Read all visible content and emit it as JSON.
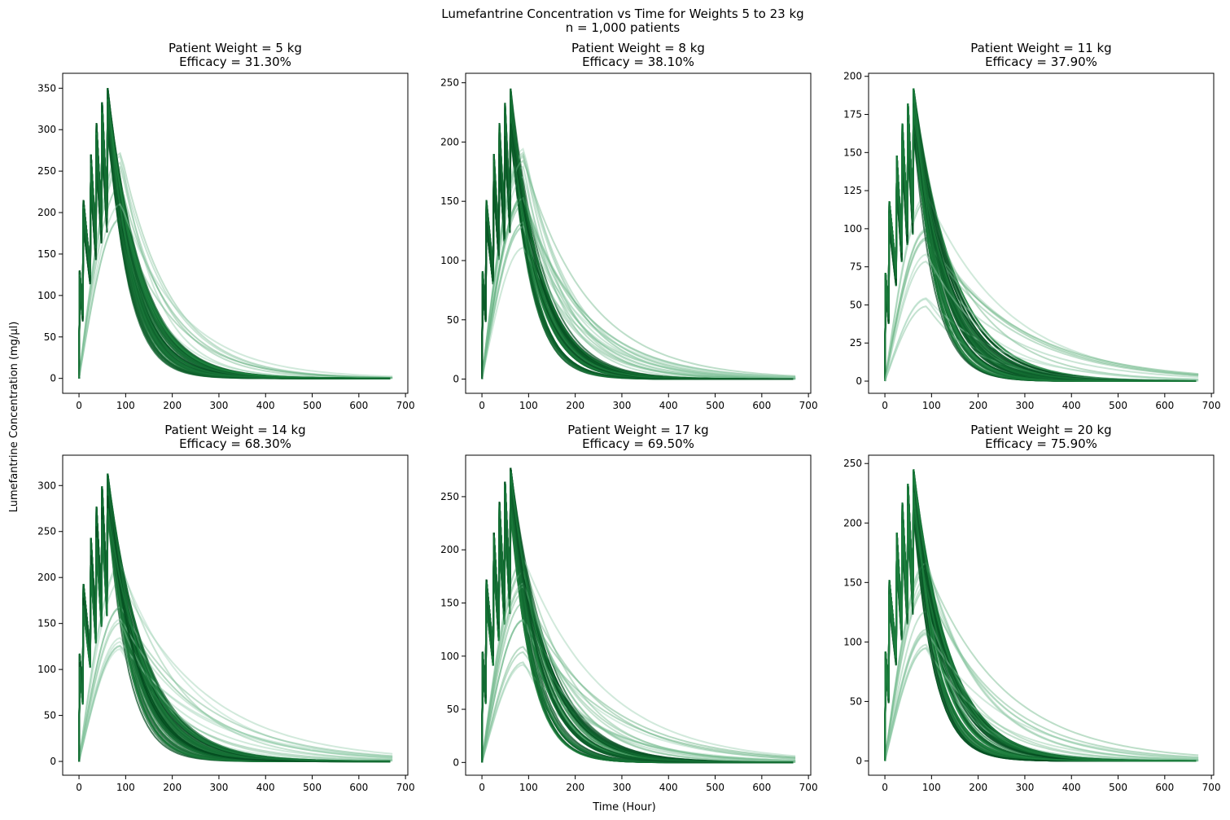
{
  "figure": {
    "suptitle_line1": "Lumefantrine Concentration vs Time for Weights 5 to 23 kg",
    "suptitle_line2": "n = 1,000 patients",
    "ylabel": "Lumefantrine Concentration (mg/µl)",
    "xlabel": "Time (Hour)"
  },
  "colors": {
    "light_green": "#a8d8bd",
    "mid_green": "#238b45",
    "dark_green": "#00441b",
    "axis": "#000000"
  },
  "chart_data": [
    {
      "type": "line",
      "title_line1": "Patient Weight = 5 kg",
      "title_line2": "Efficacy = 31.30%",
      "x_ticks": [
        0,
        100,
        200,
        300,
        400,
        500,
        600,
        700
      ],
      "y_ticks": [
        0,
        50,
        100,
        150,
        200,
        250,
        300,
        350
      ],
      "xlim": [
        -35,
        705
      ],
      "ylim": [
        -18,
        368
      ],
      "dose_times": [
        0,
        8,
        24,
        36,
        48,
        60
      ],
      "peaks": [
        130,
        215,
        270,
        308,
        333,
        350
      ],
      "x_max": 672,
      "decay_halflife_hours": [
        30,
        100
      ],
      "min_peak": 175
    },
    {
      "type": "line",
      "title_line1": "Patient Weight = 8 kg",
      "title_line2": "Efficacy = 38.10%",
      "x_ticks": [
        0,
        100,
        200,
        300,
        400,
        500,
        600,
        700
      ],
      "y_ticks": [
        0,
        50,
        100,
        150,
        200,
        250
      ],
      "xlim": [
        -35,
        705
      ],
      "ylim": [
        -12,
        258
      ],
      "dose_times": [
        0,
        8,
        24,
        36,
        48,
        60
      ],
      "peaks": [
        91,
        151,
        190,
        216,
        233,
        245
      ],
      "x_max": 672,
      "decay_halflife_hours": [
        30,
        95
      ],
      "min_peak": 97
    },
    {
      "type": "line",
      "title_line1": "Patient Weight = 11 kg",
      "title_line2": "Efficacy = 37.90%",
      "x_ticks": [
        0,
        100,
        200,
        300,
        400,
        500,
        600,
        700
      ],
      "y_ticks": [
        0,
        25,
        50,
        75,
        100,
        125,
        150,
        175,
        200
      ],
      "xlim": [
        -35,
        705
      ],
      "ylim": [
        -8,
        202
      ],
      "dose_times": [
        0,
        8,
        24,
        36,
        48,
        60
      ],
      "peaks": [
        71,
        118,
        148,
        169,
        182,
        192
      ],
      "x_max": 672,
      "decay_halflife_hours": [
        30,
        140
      ],
      "min_peak": 48
    },
    {
      "type": "line",
      "title_line1": "Patient Weight = 14 kg",
      "title_line2": "Efficacy = 68.30%",
      "x_ticks": [
        0,
        100,
        200,
        300,
        400,
        500,
        600,
        700
      ],
      "y_ticks": [
        0,
        50,
        100,
        150,
        200,
        250,
        300
      ],
      "xlim": [
        -35,
        705
      ],
      "ylim": [
        -15,
        333
      ],
      "dose_times": [
        0,
        8,
        24,
        36,
        48,
        60
      ],
      "peaks": [
        117,
        193,
        243,
        277,
        299,
        313
      ],
      "x_max": 672,
      "decay_halflife_hours": [
        30,
        130
      ],
      "min_peak": 100
    },
    {
      "type": "line",
      "title_line1": "Patient Weight = 17 kg",
      "title_line2": "Efficacy = 69.50%",
      "x_ticks": [
        0,
        100,
        200,
        300,
        400,
        500,
        600,
        700
      ],
      "y_ticks": [
        0,
        50,
        100,
        150,
        200,
        250
      ],
      "xlim": [
        -35,
        705
      ],
      "ylim": [
        -12,
        289
      ],
      "dose_times": [
        0,
        8,
        24,
        36,
        48,
        60
      ],
      "peaks": [
        104,
        172,
        216,
        245,
        264,
        277
      ],
      "x_max": 672,
      "decay_halflife_hours": [
        30,
        125
      ],
      "min_peak": 88
    },
    {
      "type": "line",
      "title_line1": "Patient Weight = 20 kg",
      "title_line2": "Efficacy = 75.90%",
      "x_ticks": [
        0,
        100,
        200,
        300,
        400,
        500,
        600,
        700
      ],
      "y_ticks": [
        0,
        50,
        100,
        150,
        200,
        250
      ],
      "xlim": [
        -35,
        705
      ],
      "ylim": [
        -12,
        257
      ],
      "dose_times": [
        0,
        8,
        24,
        36,
        48,
        60
      ],
      "peaks": [
        92,
        152,
        192,
        217,
        233,
        245
      ],
      "x_max": 672,
      "decay_halflife_hours": [
        30,
        115
      ],
      "min_peak": 82
    }
  ]
}
